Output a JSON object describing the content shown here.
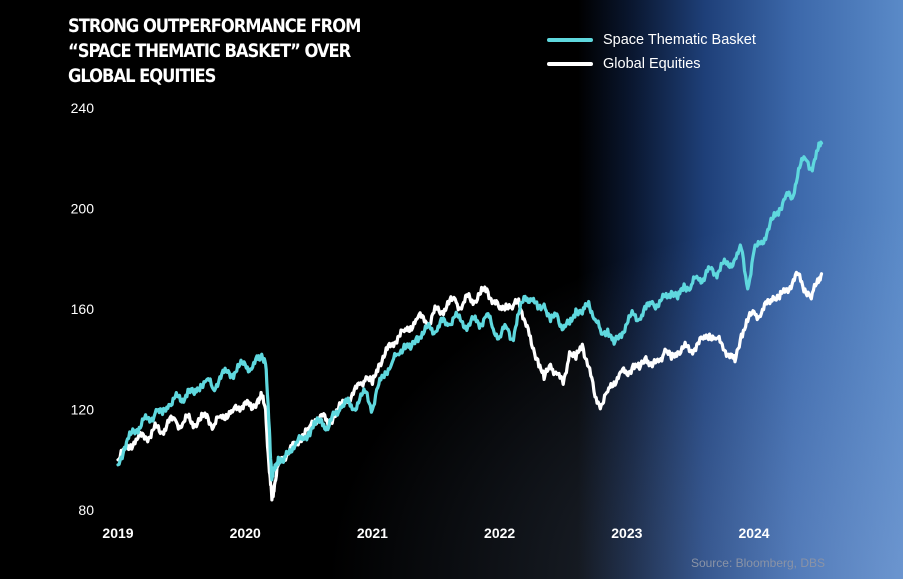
{
  "chart_data": {
    "type": "line",
    "title": "STRONG OUTPERFORMANCE FROM “SPACE THEMATIC BASKET” OVER GLOBAL EQUITIES",
    "xlabel": "",
    "ylabel": "",
    "xlim": [
      2019.0,
      2024.55
    ],
    "ylim": [
      80,
      240
    ],
    "yticks": [
      80,
      120,
      160,
      200,
      240
    ],
    "xticks": [
      2019,
      2020,
      2021,
      2022,
      2023,
      2024
    ],
    "xtick_labels": [
      "2019",
      "2020",
      "2021",
      "2022",
      "2023",
      "2024"
    ],
    "grid": false,
    "legend_position": "top-right",
    "source": "Source: Bloomberg, DBS",
    "series": [
      {
        "name": "Space Thematic Basket",
        "color": "#5fd8de",
        "x": [
          2019.0,
          2019.05,
          2019.1,
          2019.15,
          2019.2,
          2019.25,
          2019.3,
          2019.35,
          2019.4,
          2019.45,
          2019.5,
          2019.55,
          2019.6,
          2019.65,
          2019.7,
          2019.75,
          2019.8,
          2019.85,
          2019.9,
          2019.95,
          2020.0,
          2020.05,
          2020.1,
          2020.13,
          2020.16,
          2020.19,
          2020.21,
          2020.23,
          2020.26,
          2020.3,
          2020.35,
          2020.4,
          2020.45,
          2020.5,
          2020.55,
          2020.6,
          2020.65,
          2020.7,
          2020.75,
          2020.8,
          2020.85,
          2020.9,
          2020.95,
          2021.0,
          2021.05,
          2021.1,
          2021.15,
          2021.2,
          2021.25,
          2021.3,
          2021.35,
          2021.4,
          2021.45,
          2021.5,
          2021.55,
          2021.6,
          2021.65,
          2021.7,
          2021.75,
          2021.8,
          2021.85,
          2021.9,
          2021.95,
          2022.0,
          2022.05,
          2022.1,
          2022.15,
          2022.2,
          2022.25,
          2022.3,
          2022.35,
          2022.4,
          2022.45,
          2022.5,
          2022.55,
          2022.6,
          2022.65,
          2022.7,
          2022.75,
          2022.8,
          2022.85,
          2022.9,
          2022.95,
          2023.0,
          2023.05,
          2023.1,
          2023.15,
          2023.2,
          2023.25,
          2023.3,
          2023.35,
          2023.4,
          2023.45,
          2023.5,
          2023.55,
          2023.6,
          2023.65,
          2023.7,
          2023.75,
          2023.8,
          2023.85,
          2023.9,
          2023.95,
          2024.0,
          2024.05,
          2024.1,
          2024.15,
          2024.2,
          2024.25,
          2024.3,
          2024.35,
          2024.4,
          2024.45,
          2024.5,
          2024.53
        ],
        "values": [
          98,
          105,
          110,
          112,
          116,
          115,
          120,
          118,
          122,
          125,
          123,
          128,
          126,
          130,
          132,
          128,
          133,
          135,
          134,
          137,
          138,
          136,
          140,
          142,
          138,
          112,
          92,
          96,
          101,
          99,
          104,
          107,
          108,
          111,
          114,
          116,
          112,
          118,
          121,
          123,
          120,
          124,
          127,
          120,
          130,
          135,
          138,
          142,
          146,
          144,
          149,
          150,
          153,
          151,
          155,
          154,
          157,
          155,
          153,
          156,
          154,
          158,
          152,
          149,
          153,
          148,
          158,
          165,
          164,
          160,
          162,
          155,
          158,
          152,
          154,
          160,
          158,
          163,
          156,
          150,
          152,
          146,
          150,
          154,
          158,
          156,
          160,
          163,
          161,
          165,
          167,
          164,
          170,
          168,
          173,
          172,
          176,
          174,
          178,
          177,
          180,
          184,
          168,
          183,
          186,
          190,
          196,
          200,
          205,
          204,
          216,
          220,
          216,
          223,
          226
        ]
      },
      {
        "name": "Global Equities",
        "color": "#ffffff",
        "x": [
          2019.0,
          2019.05,
          2019.1,
          2019.15,
          2019.2,
          2019.25,
          2019.3,
          2019.35,
          2019.4,
          2019.45,
          2019.5,
          2019.55,
          2019.6,
          2019.65,
          2019.7,
          2019.75,
          2019.8,
          2019.85,
          2019.9,
          2019.95,
          2020.0,
          2020.05,
          2020.1,
          2020.13,
          2020.16,
          2020.19,
          2020.21,
          2020.23,
          2020.26,
          2020.3,
          2020.35,
          2020.4,
          2020.45,
          2020.5,
          2020.55,
          2020.6,
          2020.65,
          2020.7,
          2020.75,
          2020.8,
          2020.85,
          2020.9,
          2020.95,
          2021.0,
          2021.05,
          2021.1,
          2021.15,
          2021.2,
          2021.25,
          2021.3,
          2021.35,
          2021.4,
          2021.45,
          2021.5,
          2021.55,
          2021.6,
          2021.65,
          2021.7,
          2021.75,
          2021.8,
          2021.85,
          2021.9,
          2021.95,
          2022.0,
          2022.05,
          2022.1,
          2022.15,
          2022.2,
          2022.25,
          2022.3,
          2022.35,
          2022.4,
          2022.45,
          2022.5,
          2022.55,
          2022.6,
          2022.65,
          2022.7,
          2022.75,
          2022.8,
          2022.85,
          2022.9,
          2022.95,
          2023.0,
          2023.05,
          2023.1,
          2023.15,
          2023.2,
          2023.25,
          2023.3,
          2023.35,
          2023.4,
          2023.45,
          2023.5,
          2023.55,
          2023.6,
          2023.65,
          2023.7,
          2023.75,
          2023.8,
          2023.85,
          2023.9,
          2023.95,
          2024.0,
          2024.05,
          2024.1,
          2024.15,
          2024.2,
          2024.25,
          2024.3,
          2024.35,
          2024.4,
          2024.45,
          2024.5,
          2024.53
        ],
        "values": [
          100,
          104,
          106,
          108,
          110,
          109,
          113,
          111,
          115,
          116,
          113,
          117,
          114,
          116,
          118,
          113,
          117,
          118,
          119,
          121,
          123,
          120,
          124,
          125,
          120,
          95,
          84,
          90,
          98,
          101,
          104,
          106,
          110,
          112,
          116,
          118,
          114,
          118,
          121,
          124,
          126,
          130,
          133,
          130,
          138,
          142,
          146,
          149,
          151,
          153,
          156,
          157,
          154,
          160,
          159,
          162,
          164,
          160,
          165,
          163,
          166,
          168,
          163,
          160,
          162,
          160,
          164,
          155,
          146,
          140,
          132,
          138,
          134,
          130,
          143,
          140,
          146,
          137,
          125,
          122,
          127,
          131,
          135,
          134,
          138,
          136,
          141,
          137,
          139,
          144,
          140,
          143,
          145,
          143,
          146,
          148,
          150,
          148,
          146,
          142,
          139,
          150,
          155,
          159,
          157,
          162,
          165,
          164,
          168,
          170,
          174,
          168,
          164,
          172,
          174
        ]
      }
    ]
  }
}
